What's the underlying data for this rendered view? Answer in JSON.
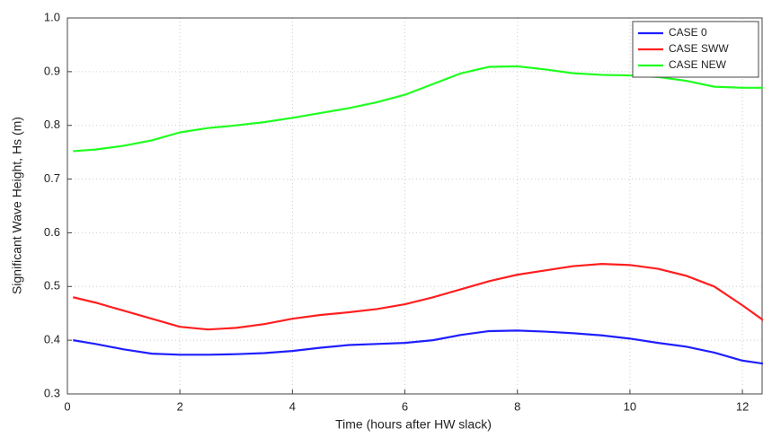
{
  "chart_data": {
    "type": "line",
    "xlabel": "Time (hours after HW slack)",
    "ylabel": "Significant Wave Height, Hs (m)",
    "x": [
      0.1,
      0.5,
      1,
      1.5,
      2,
      2.5,
      3,
      3.5,
      4,
      4.5,
      5,
      5.5,
      6,
      6.5,
      7,
      7.5,
      8,
      8.5,
      9,
      9.5,
      10,
      10.5,
      11,
      11.5,
      12,
      12.4
    ],
    "series": [
      {
        "name": "CASE 0",
        "color": "#1f1fff",
        "values": [
          0.4,
          0.393,
          0.383,
          0.375,
          0.373,
          0.373,
          0.374,
          0.376,
          0.38,
          0.386,
          0.391,
          0.393,
          0.395,
          0.4,
          0.41,
          0.417,
          0.418,
          0.416,
          0.413,
          0.409,
          0.403,
          0.395,
          0.388,
          0.377,
          0.362,
          0.356
        ]
      },
      {
        "name": "CASE SWW",
        "color": "#ff1f1f",
        "values": [
          0.48,
          0.47,
          0.455,
          0.44,
          0.425,
          0.42,
          0.423,
          0.43,
          0.44,
          0.447,
          0.452,
          0.458,
          0.467,
          0.48,
          0.495,
          0.51,
          0.522,
          0.53,
          0.538,
          0.542,
          0.54,
          0.533,
          0.52,
          0.5,
          0.465,
          0.435
        ]
      },
      {
        "name": "CASE NEW",
        "color": "#1fff1f",
        "values": [
          0.752,
          0.755,
          0.762,
          0.772,
          0.787,
          0.795,
          0.8,
          0.806,
          0.814,
          0.823,
          0.832,
          0.843,
          0.857,
          0.877,
          0.897,
          0.909,
          0.91,
          0.904,
          0.897,
          0.894,
          0.893,
          0.89,
          0.883,
          0.872,
          0.87,
          0.87
        ]
      }
    ],
    "xlim": [
      0,
      12.35
    ],
    "xticks": [
      0,
      2,
      4,
      6,
      8,
      10,
      12
    ],
    "ylim": [
      0.3,
      1
    ],
    "yticks": [
      0.3,
      0.4,
      0.5,
      0.6,
      0.7,
      0.8,
      0.9,
      {
        "value": 1,
        "label": "1.0"
      }
    ],
    "grid": true,
    "legend": "upper-right"
  }
}
